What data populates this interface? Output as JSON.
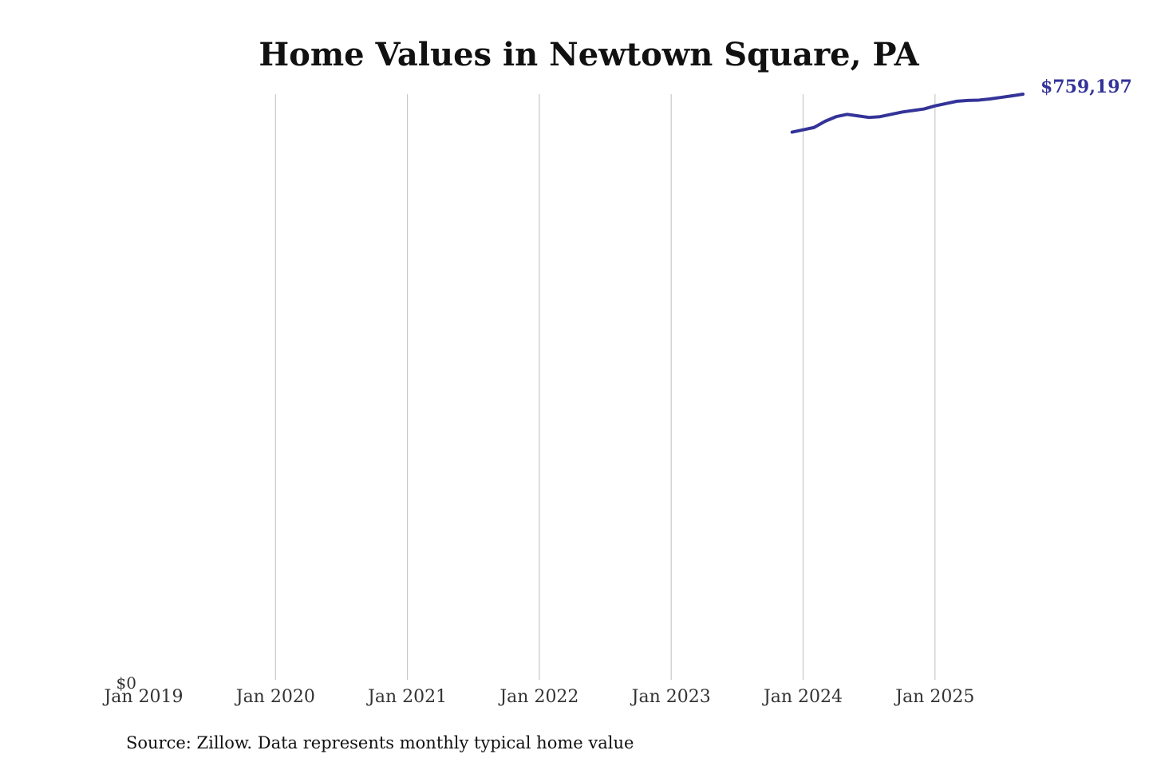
{
  "chart_data": {
    "type": "line",
    "title": "Home Values in Newtown Square, PA",
    "xlabel": "",
    "ylabel": "",
    "x_ticks": [
      "Jan 2019",
      "Jan 2020",
      "Jan 2021",
      "Jan 2022",
      "Jan 2023",
      "Jan 2024",
      "Jan 2025"
    ],
    "x_range": [
      "2019-01",
      "2025-09"
    ],
    "y_ticks": [
      {
        "value": 0,
        "label": "$0"
      }
    ],
    "ylim": [
      0,
      759197
    ],
    "grid": "vertical",
    "series": [
      {
        "color": "#333399",
        "x": [
          "2023-12",
          "2024-01",
          "2024-02",
          "2024-03",
          "2024-04",
          "2024-05",
          "2024-06",
          "2024-07",
          "2024-08",
          "2024-09",
          "2024-10",
          "2024-11",
          "2024-12",
          "2025-01",
          "2025-02",
          "2025-03",
          "2025-04",
          "2025-05",
          "2025-06",
          "2025-07",
          "2025-08",
          "2025-09"
        ],
        "y": [
          710000,
          713000,
          716000,
          724000,
          730000,
          733000,
          731000,
          729000,
          730000,
          733000,
          736000,
          738000,
          740000,
          744000,
          747000,
          750000,
          751000,
          751500,
          753000,
          755000,
          757000,
          759197
        ]
      }
    ],
    "end_label": "$759,197",
    "source": "Source: Zillow. Data represents monthly typical home value"
  }
}
